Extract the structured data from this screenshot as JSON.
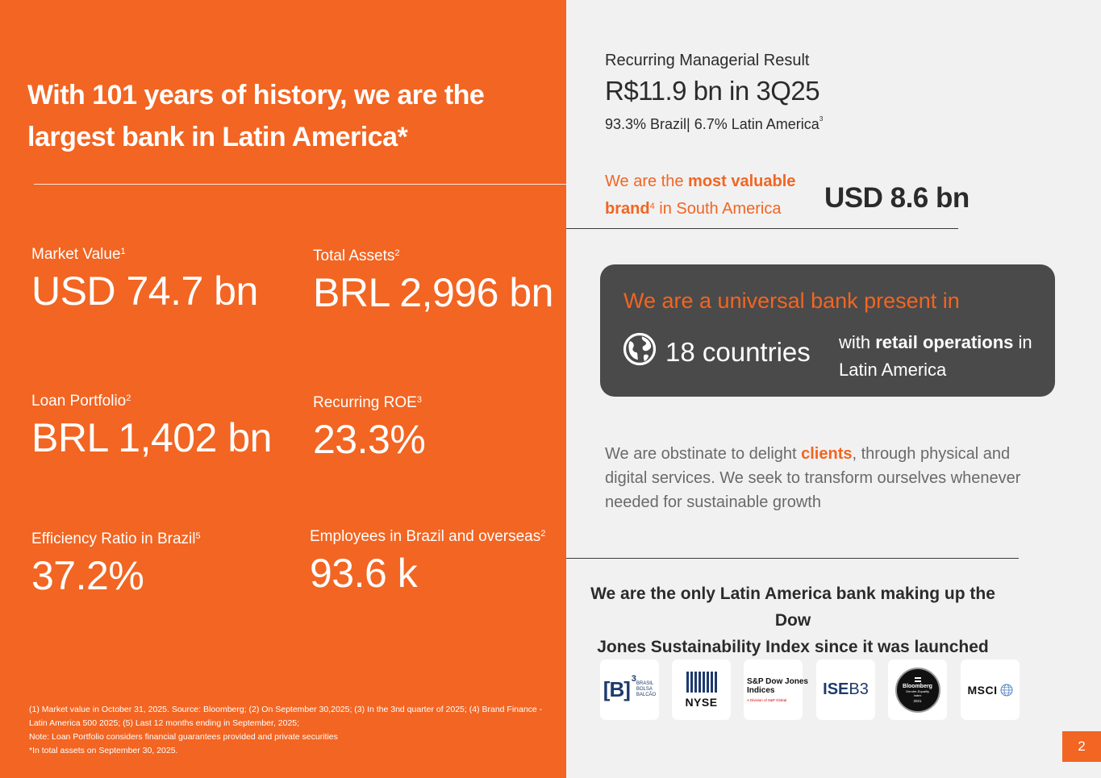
{
  "left": {
    "headline_line1": "With 101 years of history, we are the",
    "headline_line2": "largest bank in Latin America*",
    "stats": [
      {
        "label": "Market Value",
        "sup": "1",
        "value": "USD 74.7 bn"
      },
      {
        "label": "Total Assets",
        "sup": "2",
        "value": "BRL 2,996 bn"
      },
      {
        "label": "Loan Portfolio",
        "sup": "2",
        "value": "BRL 1,402 bn"
      },
      {
        "label": "Recurring ROE",
        "sup": "3",
        "value": "23.3%"
      },
      {
        "label": "Efficiency Ratio in Brazil",
        "sup": "5",
        "value": "37.2%"
      },
      {
        "label": "Employees in Brazil and overseas",
        "sup": "2",
        "value": "93.6 k"
      }
    ],
    "footnotes": [
      "(1)  Market value in October 31, 2025. Source: Bloomberg; (2) On September 30,2025; (3) In the 3nd quarter of 2025; (4) Brand Finance -",
      "Latin America 500 2025; (5) Last 12 months ending in September, 2025;",
      "Note: Loan Portfolio considers financial guarantees provided and private securities",
      "*In total assets on September 30, 2025."
    ]
  },
  "right": {
    "rmr_label": "Recurring Managerial Result",
    "rmr_value": "R$11.9 bn in 3Q25",
    "rmr_split": "93.3% Brazil| 6.7% Latin America",
    "rmr_split_sup": "3",
    "brand_pre": "We are the ",
    "brand_bold1": "most valuable",
    "brand_bold2": "brand",
    "brand_sup": "4",
    "brand_post": " in South America",
    "brand_value": "USD 8.6 bn",
    "universal_title": "We are a universal bank present in",
    "countries": "18 countries",
    "retail_pre": "with ",
    "retail_bold": "retail operations",
    "retail_post": " in Latin America",
    "mission_pre": "We are obstinate to delight ",
    "mission_bold": "clients",
    "mission_post": ", through physical and digital services. We seek to transform ourselves whenever needed for sustainable growth",
    "dj_line1": "We are the only Latin America bank making up the Dow",
    "dj_line2": "Jones Sustainability Index since it was launched",
    "logos": {
      "b3_sup": "3",
      "b3_l1": "BRASIL",
      "b3_l2": "BOLSA",
      "b3_l3": "BALCÃO",
      "nyse": "NYSE",
      "sp_l1": "S&P Dow Jones",
      "sp_l2": "Indices",
      "sp_l3": "A Division of S&P Global",
      "ise_a": "ISE",
      "ise_b": "B3",
      "bb_l1": "Bloomberg",
      "bb_l2": "Gender-Equality",
      "bb_l3": "Index",
      "bb_l4": "2021",
      "msci": "MSCI"
    }
  },
  "page_number": "2",
  "colors": {
    "orange": "#f26522",
    "dark_box": "#4a4a4a",
    "panel_bg": "#f1f1f1",
    "text_dark": "#2b2b2b"
  }
}
